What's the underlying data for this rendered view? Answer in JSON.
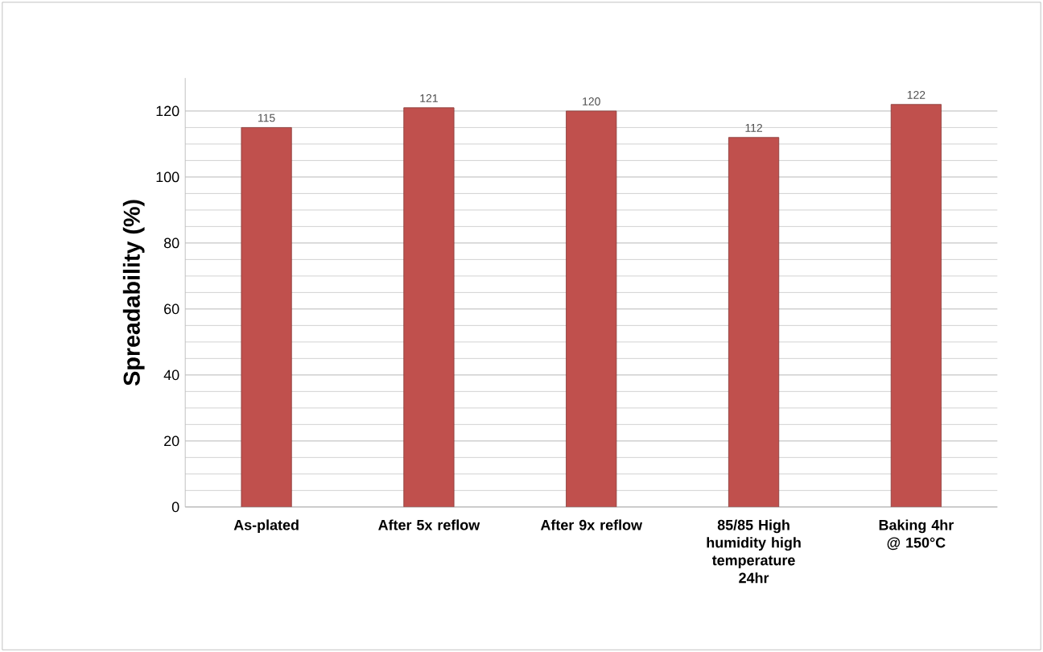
{
  "chart_data": {
    "type": "bar",
    "ylabel": "Spreadability (%)",
    "categories": [
      "As-plated",
      "After 5x reflow",
      "After 9x reflow",
      "85/85 High humidity high temperature 24hr",
      "Baking 4hr @ 150°C"
    ],
    "values": [
      115,
      121,
      120,
      112,
      122
    ],
    "color": "#c0504d",
    "ylim": [
      0,
      130
    ],
    "yticks": [
      0,
      20,
      40,
      60,
      80,
      100,
      120
    ],
    "grid": "y",
    "data_labels": true
  }
}
